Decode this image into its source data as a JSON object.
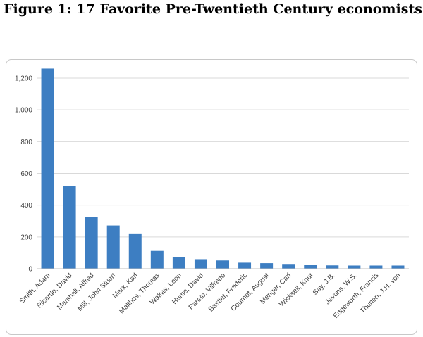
{
  "figure_title": "Figure 1: 17 Favorite Pre-Twentieth Century economists",
  "colors": {
    "bar": "#3d7ec2",
    "grid": "#d9d9d9",
    "axis": "#bfbfbf",
    "text": "#404040"
  },
  "chart_data": {
    "type": "bar",
    "title": "",
    "xlabel": "",
    "ylabel": "",
    "ylim": [
      0,
      1300
    ],
    "yticks": [
      0,
      200,
      400,
      600,
      800,
      1000,
      1200
    ],
    "ytick_labels": [
      "0",
      "200",
      "400",
      "600",
      "800",
      "1,000",
      "1,200"
    ],
    "grid": true,
    "categories": [
      "Smith, Adam",
      "Ricardo, David",
      "Marshall, Alfred",
      "Mill, John Stuart",
      "Marx, Karl",
      "Malthus, Thomas",
      "Walras, Leon",
      "Hume, David",
      "Pareto, Vilfredo",
      "Bastiat, Frederic",
      "Cournot, August",
      "Menger, Carl",
      "Wicksell, Knut",
      "Say, J.B.",
      "Jevons, W.S.",
      "Edgeworth, Francis",
      "Thunen, J.H. von"
    ],
    "values": [
      1260,
      522,
      325,
      272,
      222,
      112,
      72,
      60,
      52,
      38,
      35,
      30,
      25,
      21,
      20,
      20,
      20
    ]
  }
}
